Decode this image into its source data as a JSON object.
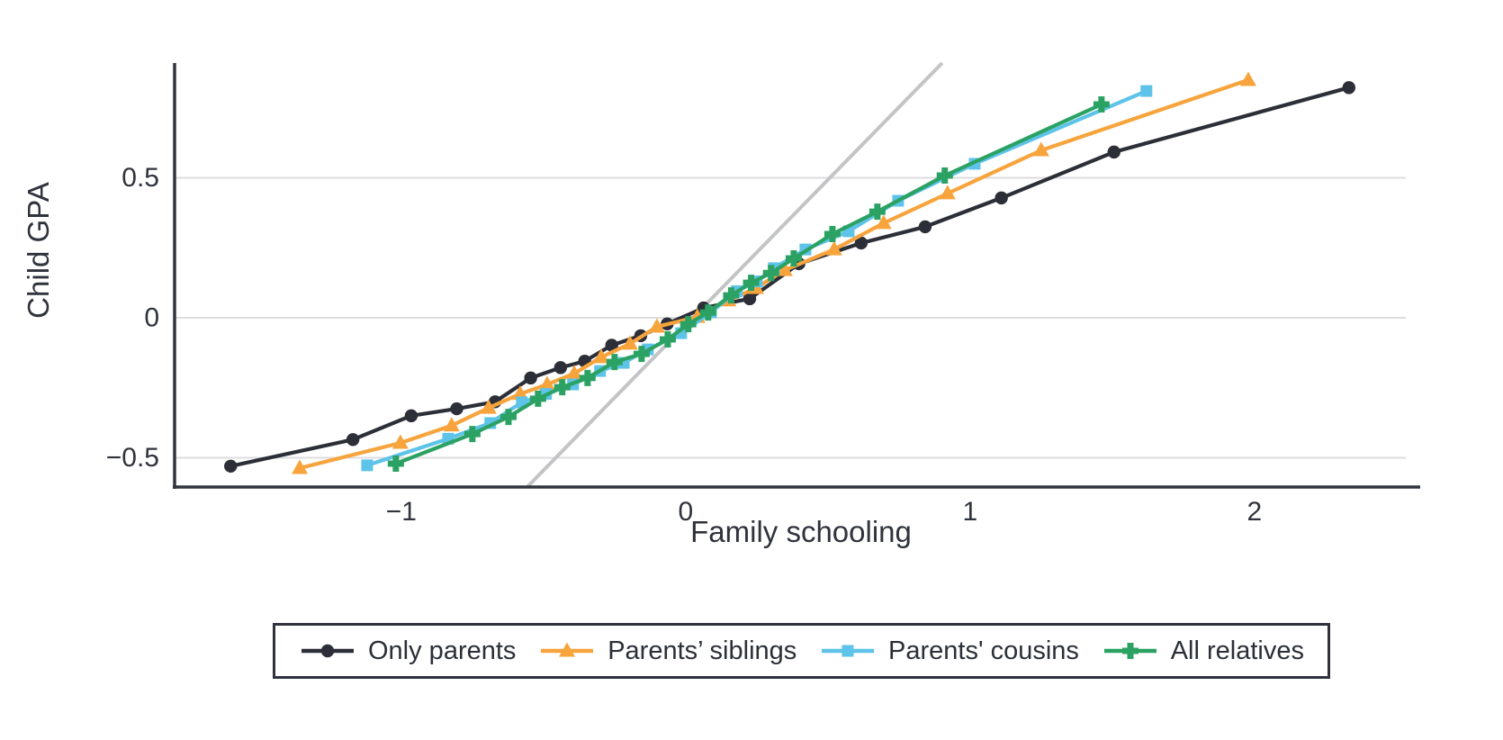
{
  "figure": {
    "x_axis_title": "Family schooling",
    "y_axis_title": "Child GPA"
  },
  "colors": {
    "only_parents": "#2c2f38",
    "parents_siblings": "#f7a43d",
    "parents_cousins": "#5ec3e8",
    "all_relatives": "#2ba263",
    "reference_line": "#c3c4c6",
    "gridline": "#dcdddf",
    "axis": "#32353e",
    "text": "#30333c"
  },
  "legend": {
    "items": [
      {
        "label": "Only parents",
        "marker": "circle",
        "color": "#2c2f38"
      },
      {
        "label": "Parents’ siblings",
        "marker": "triangle",
        "color": "#f7a43d"
      },
      {
        "label": "Parents' cousins",
        "marker": "square",
        "color": "#5ec3e8"
      },
      {
        "label": "All relatives",
        "marker": "plus",
        "color": "#2ba263"
      }
    ]
  },
  "chart_data": {
    "type": "line",
    "title": "",
    "xlabel": "Family schooling",
    "ylabel": "Child GPA",
    "xlim": [
      -1.797,
      2.532
    ],
    "ylim": [
      -0.6045,
      0.9035
    ],
    "grid": "horizontal-only",
    "legend_position": "bottom-outside",
    "x_ticks": [
      {
        "value": -1,
        "label": "−1"
      },
      {
        "value": 0,
        "label": "0"
      },
      {
        "value": 1,
        "label": "1"
      },
      {
        "value": 2,
        "label": "2"
      }
    ],
    "y_ticks": [
      {
        "value": 0.5,
        "label": "0.5"
      },
      {
        "value": 0,
        "label": "0"
      },
      {
        "value": -0.5,
        "label": "−0.5"
      }
    ],
    "reference_line": {
      "description": "45-degree identity line y = x",
      "x1": -0.557,
      "y1": -0.604,
      "x2": 0.902,
      "y2": 0.91,
      "color": "#c3c4c6"
    },
    "series": [
      {
        "name": "Only parents",
        "marker": "circle",
        "color": "#2c2f38",
        "points": [
          [
            -1.6,
            -0.53
          ],
          [
            -1.17,
            -0.435
          ],
          [
            -0.965,
            -0.35
          ],
          [
            -0.805,
            -0.325
          ],
          [
            -0.67,
            -0.3
          ],
          [
            -0.545,
            -0.215
          ],
          [
            -0.44,
            -0.178
          ],
          [
            -0.355,
            -0.155
          ],
          [
            -0.26,
            -0.098
          ],
          [
            -0.158,
            -0.064
          ],
          [
            -0.065,
            -0.022
          ],
          [
            0.063,
            0.035
          ],
          [
            0.225,
            0.068
          ],
          [
            0.398,
            0.193
          ],
          [
            0.617,
            0.267
          ],
          [
            0.842,
            0.325
          ],
          [
            1.11,
            0.428
          ],
          [
            1.506,
            0.592
          ],
          [
            2.332,
            0.822
          ]
        ]
      },
      {
        "name": "Parents’ siblings",
        "marker": "triangle",
        "color": "#f7a43d",
        "points": [
          [
            -1.357,
            -0.537
          ],
          [
            -1.003,
            -0.447
          ],
          [
            -0.823,
            -0.385
          ],
          [
            -0.693,
            -0.322
          ],
          [
            -0.582,
            -0.272
          ],
          [
            -0.487,
            -0.238
          ],
          [
            -0.392,
            -0.199
          ],
          [
            -0.297,
            -0.141
          ],
          [
            -0.196,
            -0.093
          ],
          [
            -0.101,
            -0.032
          ],
          [
            0.041,
            0.003
          ],
          [
            0.15,
            0.062
          ],
          [
            0.247,
            0.106
          ],
          [
            0.348,
            0.17
          ],
          [
            0.522,
            0.244
          ],
          [
            0.696,
            0.338
          ],
          [
            0.921,
            0.444
          ],
          [
            1.25,
            0.598
          ],
          [
            1.978,
            0.849
          ]
        ]
      },
      {
        "name": "Parents' cousins",
        "marker": "square",
        "color": "#5ec3e8",
        "points": [
          [
            -1.12,
            -0.527
          ],
          [
            -0.835,
            -0.432
          ],
          [
            -0.687,
            -0.376
          ],
          [
            -0.576,
            -0.302
          ],
          [
            -0.491,
            -0.272
          ],
          [
            -0.396,
            -0.238
          ],
          [
            -0.301,
            -0.19
          ],
          [
            -0.218,
            -0.161
          ],
          [
            -0.133,
            -0.113
          ],
          [
            -0.016,
            -0.055
          ],
          [
            0.089,
            0.02
          ],
          [
            0.18,
            0.095
          ],
          [
            0.25,
            0.13
          ],
          [
            0.31,
            0.177
          ],
          [
            0.421,
            0.244
          ],
          [
            0.573,
            0.309
          ],
          [
            0.747,
            0.418
          ],
          [
            1.016,
            0.55
          ],
          [
            1.62,
            0.81
          ]
        ]
      },
      {
        "name": "All relatives",
        "marker": "plus",
        "color": "#2ba263",
        "points": [
          [
            -1.019,
            -0.521
          ],
          [
            -0.75,
            -0.415
          ],
          [
            -0.623,
            -0.354
          ],
          [
            -0.519,
            -0.289
          ],
          [
            -0.434,
            -0.248
          ],
          [
            -0.345,
            -0.215
          ],
          [
            -0.25,
            -0.158
          ],
          [
            -0.155,
            -0.129
          ],
          [
            -0.063,
            -0.077
          ],
          [
            0.009,
            -0.023
          ],
          [
            0.079,
            0.019
          ],
          [
            0.16,
            0.08
          ],
          [
            0.23,
            0.125
          ],
          [
            0.3,
            0.16
          ],
          [
            0.38,
            0.212
          ],
          [
            0.516,
            0.299
          ],
          [
            0.674,
            0.379
          ],
          [
            0.911,
            0.508
          ],
          [
            1.462,
            0.762
          ]
        ]
      }
    ]
  }
}
